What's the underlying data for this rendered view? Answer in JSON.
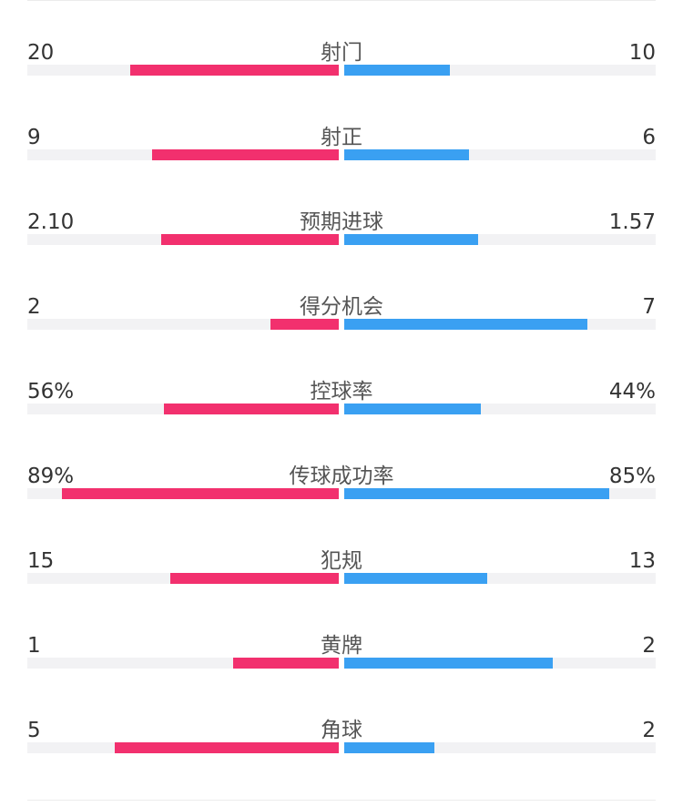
{
  "colors": {
    "home": "#f2306e",
    "away": "#3aa0f2",
    "track": "#f2f2f4"
  },
  "chart_data": {
    "type": "bar",
    "orientation": "diverging-horizontal",
    "grid": false,
    "rows": [
      {
        "label": "射门",
        "left_text": "20",
        "right_text": "10",
        "left_fill": 0.67,
        "right_fill": 0.34
      },
      {
        "label": "射正",
        "left_text": "9",
        "right_text": "6",
        "left_fill": 0.6,
        "right_fill": 0.4
      },
      {
        "label": "预期进球",
        "left_text": "2.10",
        "right_text": "1.57",
        "left_fill": 0.57,
        "right_fill": 0.43
      },
      {
        "label": "得分机会",
        "left_text": "2",
        "right_text": "7",
        "left_fill": 0.22,
        "right_fill": 0.78
      },
      {
        "label": "控球率",
        "left_text": "56%",
        "right_text": "44%",
        "left_fill": 0.56,
        "right_fill": 0.44
      },
      {
        "label": "传球成功率",
        "left_text": "89%",
        "right_text": "85%",
        "left_fill": 0.89,
        "right_fill": 0.85
      },
      {
        "label": "犯规",
        "left_text": "15",
        "right_text": "13",
        "left_fill": 0.54,
        "right_fill": 0.46
      },
      {
        "label": "黄牌",
        "left_text": "1",
        "right_text": "2",
        "left_fill": 0.34,
        "right_fill": 0.67
      },
      {
        "label": "角球",
        "left_text": "5",
        "right_text": "2",
        "left_fill": 0.72,
        "right_fill": 0.29
      }
    ]
  }
}
